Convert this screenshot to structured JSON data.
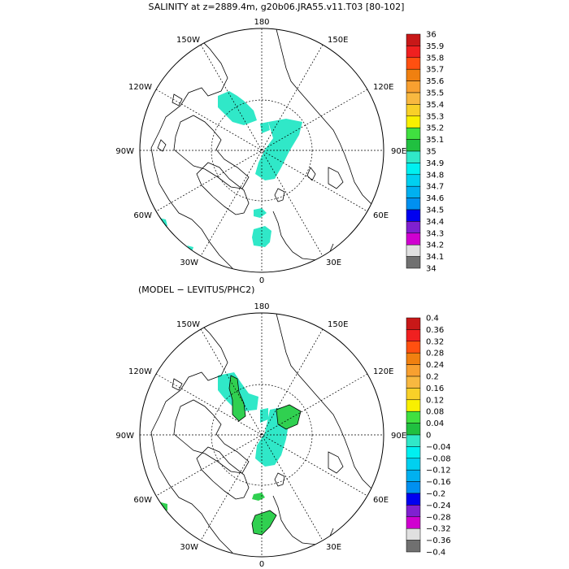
{
  "top": {
    "title": "SALINITY at z=2889.4m, g20b06.JRA55.v11.T03 [80-102]",
    "lon_labels": {
      "n": "180",
      "ne": "150E",
      "e1": "120E",
      "e": "90E",
      "e2": "60E",
      "e3": "30E",
      "s": "0",
      "w3": "30W",
      "w2": "60W",
      "w": "90W",
      "w1": "120W",
      "nw": "150W"
    },
    "colorbar": {
      "labels": [
        "36",
        "35.9",
        "35.8",
        "35.7",
        "35.6",
        "35.5",
        "35.4",
        "35.3",
        "35.2",
        "35.1",
        "35",
        "34.9",
        "34.8",
        "34.7",
        "34.6",
        "34.5",
        "34.4",
        "34.3",
        "34.2",
        "34.1",
        "34"
      ]
    }
  },
  "bottom": {
    "title": "(MODEL − LEVITUS/PHC2)",
    "lon_labels": {
      "n": "180",
      "ne": "150E",
      "e1": "120E",
      "e": "90E",
      "e2": "60E",
      "e3": "30E",
      "s": "0",
      "w3": "30W",
      "w2": "60W",
      "w": "90W",
      "w1": "120W",
      "nw": "150W"
    },
    "colorbar": {
      "labels": [
        "0.4",
        "0.36",
        "0.32",
        "0.28",
        "0.24",
        "0.2",
        "0.16",
        "0.12",
        "0.08",
        "0.04",
        "0",
        "−0.04",
        "−0.08",
        "−0.12",
        "−0.16",
        "−0.2",
        "−0.24",
        "−0.28",
        "−0.32",
        "−0.36",
        "−0.4"
      ]
    }
  },
  "colors": {
    "scale": [
      "#c81818",
      "#f02020",
      "#ff5010",
      "#f08010",
      "#f8a030",
      "#f8b840",
      "#f8d028",
      "#f8f000",
      "#40e040",
      "#20c040",
      "#30e8c8",
      "#00f0f0",
      "#00d0f0",
      "#00b0f0",
      "#0090f0",
      "#0000f0",
      "#8020d0",
      "#d000d0",
      "#e0e0e0",
      "#707070"
    ],
    "top_patch": "#30e8c8",
    "diff_green": "#30d050",
    "diff_cyan": "#30e8c8"
  }
}
